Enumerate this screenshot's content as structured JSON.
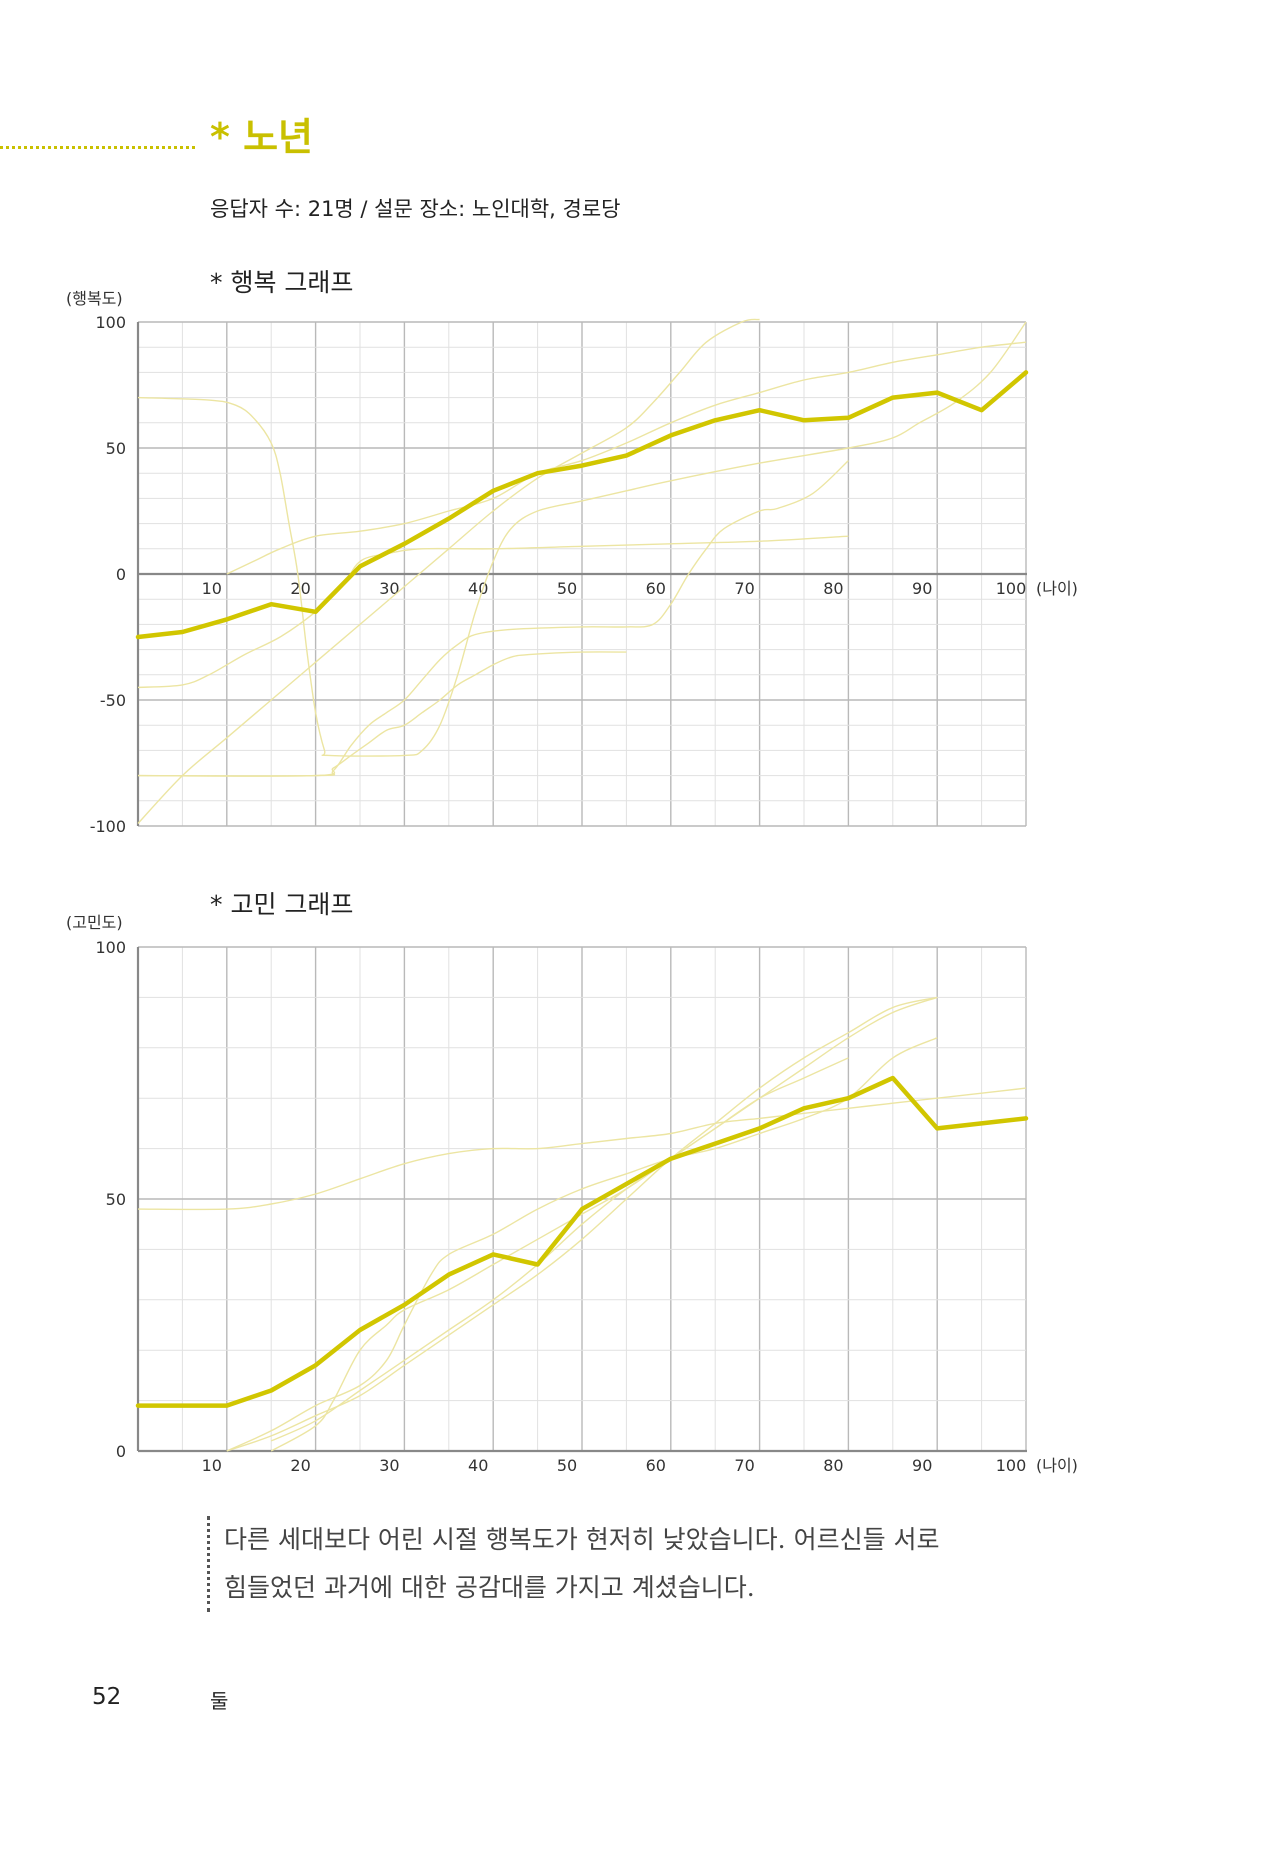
{
  "header": {
    "title": "* 노년",
    "subtitle": "응답자 수: 21명 / 설문 장소: 노인대학, 경로당"
  },
  "chart_data": [
    {
      "type": "line",
      "title": "* 행복 그래프",
      "ylabel": "(행복도)",
      "xlabel": "(나이)",
      "xlim": [
        0,
        100
      ],
      "ylim": [
        -100,
        100
      ],
      "x_ticks": [
        10,
        20,
        30,
        40,
        50,
        60,
        70,
        80,
        90,
        100
      ],
      "y_ticks": [
        100,
        50,
        0,
        -50,
        -100
      ],
      "x_axis_at": 0,
      "series": [
        {
          "emphasis": "average",
          "color": "#d1c600",
          "points": [
            [
              0,
              -25
            ],
            [
              5,
              -23
            ],
            [
              10,
              -18
            ],
            [
              15,
              -12
            ],
            [
              20,
              -15
            ],
            [
              25,
              3
            ],
            [
              30,
              12
            ],
            [
              35,
              22
            ],
            [
              40,
              33
            ],
            [
              45,
              40
            ],
            [
              50,
              43
            ],
            [
              55,
              47
            ],
            [
              60,
              55
            ],
            [
              65,
              61
            ],
            [
              70,
              65
            ],
            [
              75,
              61
            ],
            [
              80,
              62
            ],
            [
              85,
              70
            ],
            [
              90,
              72
            ],
            [
              95,
              65
            ],
            [
              100,
              80
            ]
          ]
        },
        {
          "color": "#ece5a2",
          "points": [
            [
              0,
              70
            ],
            [
              8,
              69
            ],
            [
              11,
              67
            ],
            [
              13,
              62
            ],
            [
              15,
              52
            ],
            [
              16,
              40
            ],
            [
              17,
              20
            ],
            [
              18,
              0
            ],
            [
              19,
              -30
            ],
            [
              20,
              -55
            ],
            [
              21,
              -70
            ],
            [
              21.5,
              -72
            ],
            [
              30,
              -72
            ],
            [
              32,
              -70
            ],
            [
              34,
              -60
            ],
            [
              36,
              -40
            ],
            [
              38,
              -15
            ],
            [
              40,
              5
            ],
            [
              42,
              18
            ],
            [
              45,
              25
            ],
            [
              50,
              29
            ],
            [
              55,
              33
            ],
            [
              60,
              37
            ],
            [
              70,
              44
            ],
            [
              80,
              50
            ],
            [
              85,
              54
            ],
            [
              88,
              60
            ],
            [
              92,
              68
            ],
            [
              96,
              80
            ],
            [
              100,
              100
            ]
          ]
        },
        {
          "color": "#ece5a2",
          "points": [
            [
              0,
              -80
            ],
            [
              20,
              -80
            ],
            [
              22,
              -78
            ],
            [
              24,
              -68
            ],
            [
              26,
              -60
            ],
            [
              28,
              -55
            ],
            [
              30,
              -50
            ],
            [
              32,
              -42
            ],
            [
              34,
              -34
            ],
            [
              36,
              -28
            ],
            [
              38,
              -24
            ],
            [
              42,
              -22
            ],
            [
              50,
              -21
            ],
            [
              55,
              -21
            ],
            [
              58,
              -20
            ],
            [
              60,
              -12
            ],
            [
              62,
              0
            ],
            [
              64,
              10
            ],
            [
              66,
              18
            ],
            [
              70,
              25
            ],
            [
              72,
              26
            ],
            [
              76,
              32
            ],
            [
              80,
              45
            ]
          ]
        },
        {
          "color": "#ece5a2",
          "points": [
            [
              0,
              -99
            ],
            [
              5,
              -80
            ],
            [
              10,
              -65
            ],
            [
              15,
              -50
            ],
            [
              20,
              -35
            ],
            [
              25,
              -20
            ],
            [
              30,
              -5
            ],
            [
              35,
              10
            ],
            [
              40,
              25
            ],
            [
              45,
              38
            ],
            [
              50,
              48
            ],
            [
              55,
              58
            ],
            [
              58,
              68
            ],
            [
              61,
              80
            ],
            [
              64,
              92
            ],
            [
              68,
              100
            ],
            [
              70,
              101
            ]
          ]
        },
        {
          "color": "#ece5a2",
          "points": [
            [
              0,
              -45
            ],
            [
              5,
              -44
            ],
            [
              8,
              -40
            ],
            [
              12,
              -32
            ],
            [
              16,
              -25
            ],
            [
              20,
              -15
            ],
            [
              23,
              -5
            ],
            [
              25,
              5
            ],
            [
              28,
              8
            ],
            [
              32,
              10
            ],
            [
              40,
              10
            ],
            [
              50,
              11
            ],
            [
              60,
              12
            ],
            [
              70,
              13
            ],
            [
              80,
              15
            ]
          ]
        },
        {
          "color": "#ece5a2",
          "points": [
            [
              10,
              0
            ],
            [
              13,
              5
            ],
            [
              16,
              10
            ],
            [
              20,
              15
            ],
            [
              25,
              17
            ],
            [
              30,
              20
            ],
            [
              35,
              25
            ],
            [
              40,
              30
            ],
            [
              45,
              40
            ],
            [
              50,
              45
            ],
            [
              55,
              52
            ],
            [
              60,
              60
            ],
            [
              65,
              67
            ],
            [
              70,
              72
            ],
            [
              75,
              77
            ],
            [
              80,
              80
            ],
            [
              85,
              84
            ],
            [
              90,
              87
            ],
            [
              95,
              90
            ],
            [
              100,
              92
            ]
          ]
        },
        {
          "color": "#ece5a2",
          "points": [
            [
              0,
              -80
            ],
            [
              20,
              -80
            ],
            [
              22,
              -77
            ],
            [
              24,
              -72
            ],
            [
              26,
              -67
            ],
            [
              28,
              -62
            ],
            [
              30,
              -60
            ],
            [
              32,
              -55
            ],
            [
              34,
              -50
            ],
            [
              36,
              -44
            ],
            [
              38,
              -40
            ],
            [
              40,
              -36
            ],
            [
              42,
              -33
            ],
            [
              44,
              -32
            ],
            [
              50,
              -31
            ],
            [
              55,
              -31
            ]
          ]
        }
      ]
    },
    {
      "type": "line",
      "title": "* 고민 그래프",
      "ylabel": "(고민도)",
      "xlabel": "(나이)",
      "xlim": [
        0,
        100
      ],
      "ylim": [
        0,
        100
      ],
      "x_ticks": [
        10,
        20,
        30,
        40,
        50,
        60,
        70,
        80,
        90,
        100
      ],
      "y_ticks": [
        100,
        50,
        0
      ],
      "x_axis_at": 0,
      "series": [
        {
          "emphasis": "average",
          "color": "#d1c600",
          "points": [
            [
              0,
              9
            ],
            [
              5,
              9
            ],
            [
              10,
              9
            ],
            [
              15,
              12
            ],
            [
              20,
              17
            ],
            [
              25,
              24
            ],
            [
              30,
              29
            ],
            [
              35,
              35
            ],
            [
              40,
              39
            ],
            [
              45,
              37
            ],
            [
              50,
              48
            ],
            [
              55,
              53
            ],
            [
              60,
              58
            ],
            [
              65,
              61
            ],
            [
              70,
              64
            ],
            [
              75,
              68
            ],
            [
              80,
              70
            ],
            [
              85,
              74
            ],
            [
              90,
              64
            ],
            [
              95,
              65
            ],
            [
              100,
              66
            ]
          ]
        },
        {
          "color": "#ece5a2",
          "points": [
            [
              0,
              48
            ],
            [
              10,
              48
            ],
            [
              15,
              49
            ],
            [
              20,
              51
            ],
            [
              25,
              54
            ],
            [
              30,
              57
            ],
            [
              35,
              59
            ],
            [
              40,
              60
            ],
            [
              45,
              60
            ],
            [
              50,
              61
            ],
            [
              55,
              62
            ],
            [
              60,
              63
            ],
            [
              65,
              65
            ],
            [
              70,
              66
            ],
            [
              75,
              67
            ],
            [
              80,
              68
            ],
            [
              85,
              69
            ],
            [
              90,
              70
            ],
            [
              95,
              71
            ],
            [
              100,
              72
            ]
          ]
        },
        {
          "color": "#ece5a2",
          "points": [
            [
              10,
              0
            ],
            [
              15,
              4
            ],
            [
              20,
              9
            ],
            [
              25,
              13
            ],
            [
              28,
              18
            ],
            [
              30,
              25
            ],
            [
              33,
              35
            ],
            [
              35,
              39
            ],
            [
              40,
              43
            ],
            [
              45,
              48
            ],
            [
              50,
              52
            ],
            [
              55,
              55
            ],
            [
              60,
              58
            ],
            [
              65,
              60
            ],
            [
              70,
              63
            ],
            [
              75,
              66
            ],
            [
              80,
              70
            ],
            [
              85,
              78
            ],
            [
              90,
              82
            ]
          ]
        },
        {
          "color": "#ece5a2",
          "points": [
            [
              10,
              0
            ],
            [
              15,
              3
            ],
            [
              20,
              7
            ],
            [
              25,
              11
            ],
            [
              30,
              17
            ],
            [
              35,
              23
            ],
            [
              40,
              29
            ],
            [
              45,
              35
            ],
            [
              50,
              42
            ],
            [
              55,
              50
            ],
            [
              60,
              58
            ],
            [
              65,
              65
            ],
            [
              70,
              72
            ],
            [
              75,
              78
            ],
            [
              80,
              83
            ],
            [
              85,
              88
            ],
            [
              90,
              90
            ]
          ]
        },
        {
          "color": "#ece5a2",
          "points": [
            [
              15,
              0
            ],
            [
              20,
              5
            ],
            [
              22,
              10
            ],
            [
              25,
              20
            ],
            [
              28,
              25
            ],
            [
              30,
              28
            ],
            [
              35,
              32
            ],
            [
              40,
              37
            ],
            [
              45,
              42
            ],
            [
              50,
              47
            ],
            [
              55,
              52
            ],
            [
              60,
              58
            ],
            [
              65,
              64
            ],
            [
              70,
              70
            ],
            [
              75,
              76
            ],
            [
              80,
              82
            ],
            [
              85,
              87
            ],
            [
              90,
              90
            ]
          ]
        },
        {
          "color": "#ece5a2",
          "points": [
            [
              15,
              2
            ],
            [
              20,
              6
            ],
            [
              25,
              12
            ],
            [
              30,
              18
            ],
            [
              35,
              24
            ],
            [
              40,
              30
            ],
            [
              45,
              37
            ],
            [
              50,
              45
            ],
            [
              55,
              52
            ],
            [
              60,
              58
            ],
            [
              65,
              64
            ],
            [
              70,
              70
            ],
            [
              75,
              74
            ],
            [
              80,
              78
            ]
          ]
        }
      ]
    }
  ],
  "note": {
    "lines": [
      "다른 세대보다 어린 시절 행복도가 현저히 낮았습니다. 어르신들 서로",
      "힘들었던 과거에 대한 공감대를 가지고 계셨습니다."
    ]
  },
  "footer": {
    "page_number": "52",
    "section": "둘"
  }
}
